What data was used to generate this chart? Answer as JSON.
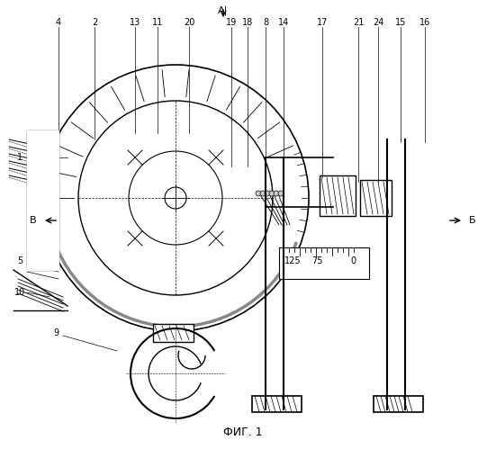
{
  "title": "ФИГ. 1",
  "bg_color": "#ffffff",
  "line_color": "#000000",
  "fig_width": 5.41,
  "fig_height": 4.99,
  "dpi": 100,
  "labels": {
    "top": [
      "4",
      "2",
      "13",
      "11",
      "20",
      "А|",
      "19",
      "18",
      "8",
      "14",
      "17",
      "21",
      "24",
      "15",
      "16"
    ],
    "left": [
      "1",
      "В",
      "5",
      "10"
    ],
    "right": [
      "Б"
    ],
    "bottom": [
      "9",
      "ФИГ. 1"
    ],
    "scale": [
      "125",
      "75",
      "0"
    ]
  }
}
